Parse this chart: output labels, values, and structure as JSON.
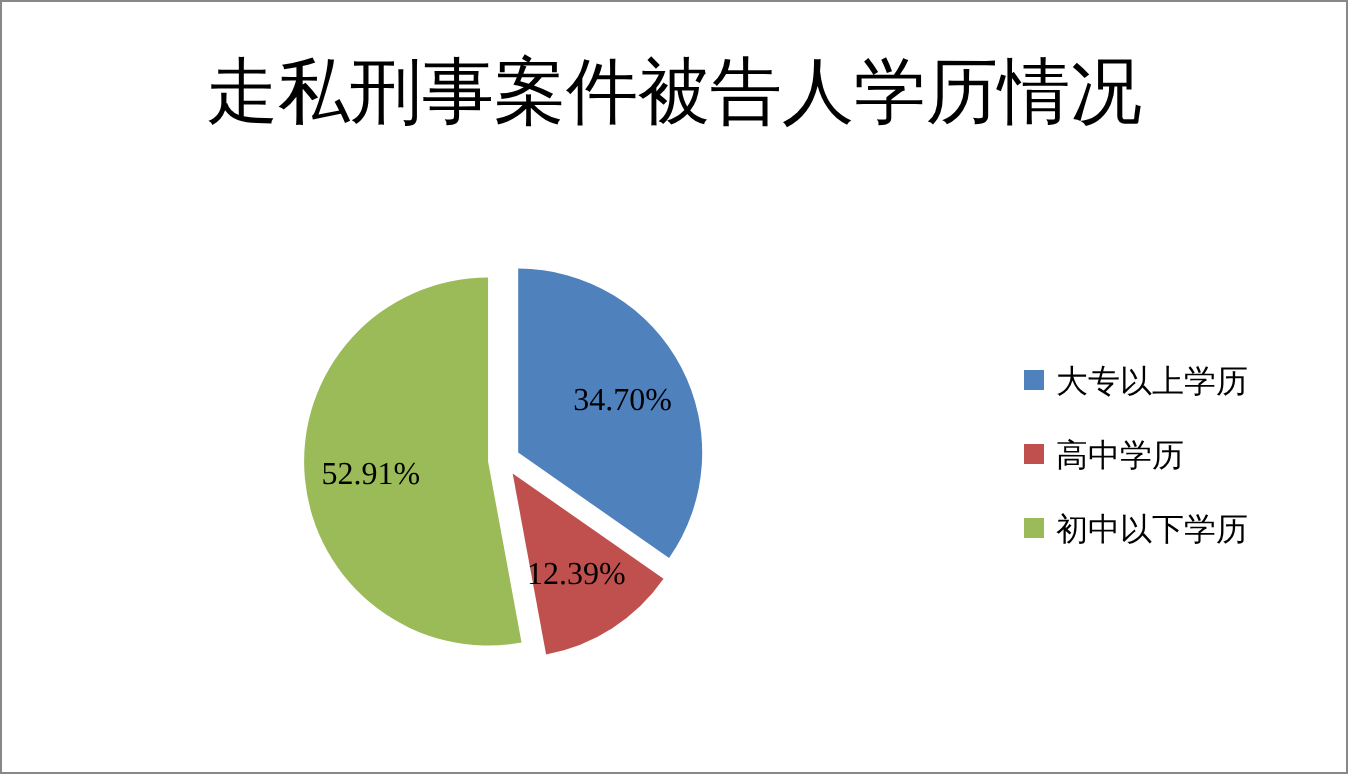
{
  "chart_data": {
    "type": "pie",
    "title": "走私刑事案件被告人学历情况",
    "categories": [
      "大专以上学历",
      "高中学历",
      "初中以下学历"
    ],
    "values": [
      34.7,
      12.39,
      52.91
    ],
    "colors": [
      "#4f81bd",
      "#c0504d",
      "#9bbb59"
    ],
    "value_labels": [
      "34.70%",
      "12.39%",
      "52.91%"
    ],
    "legend": "right"
  }
}
